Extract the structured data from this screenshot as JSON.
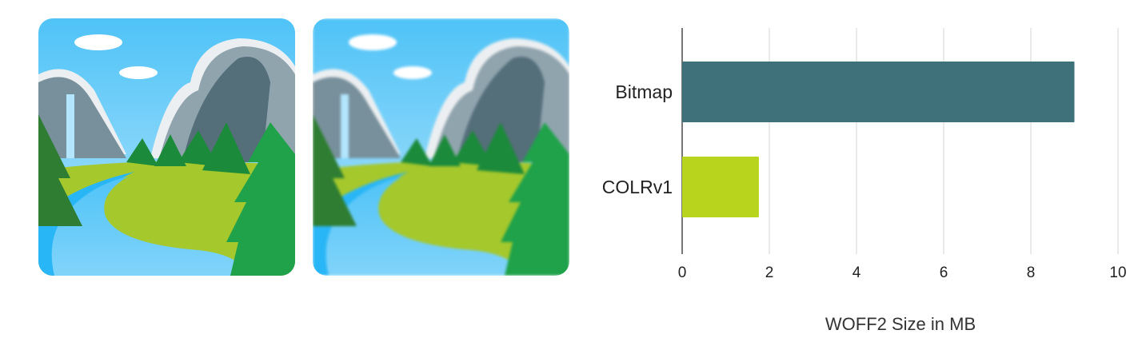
{
  "images": [
    {
      "name": "bitmap-emoji-national-park"
    },
    {
      "name": "colrv1-emoji-national-park"
    }
  ],
  "chart_data": {
    "type": "bar",
    "orientation": "horizontal",
    "categories": [
      "Bitmap",
      "COLRv1"
    ],
    "values": [
      9.0,
      1.76
    ],
    "colors": [
      "#3f717a",
      "#b8d41c"
    ],
    "xlabel": "WOFF2 Size in MB",
    "ylabel": "",
    "xlim": [
      0,
      10
    ],
    "xticks": [
      "0",
      "2",
      "4",
      "6",
      "8",
      "10"
    ],
    "grid": true
  }
}
